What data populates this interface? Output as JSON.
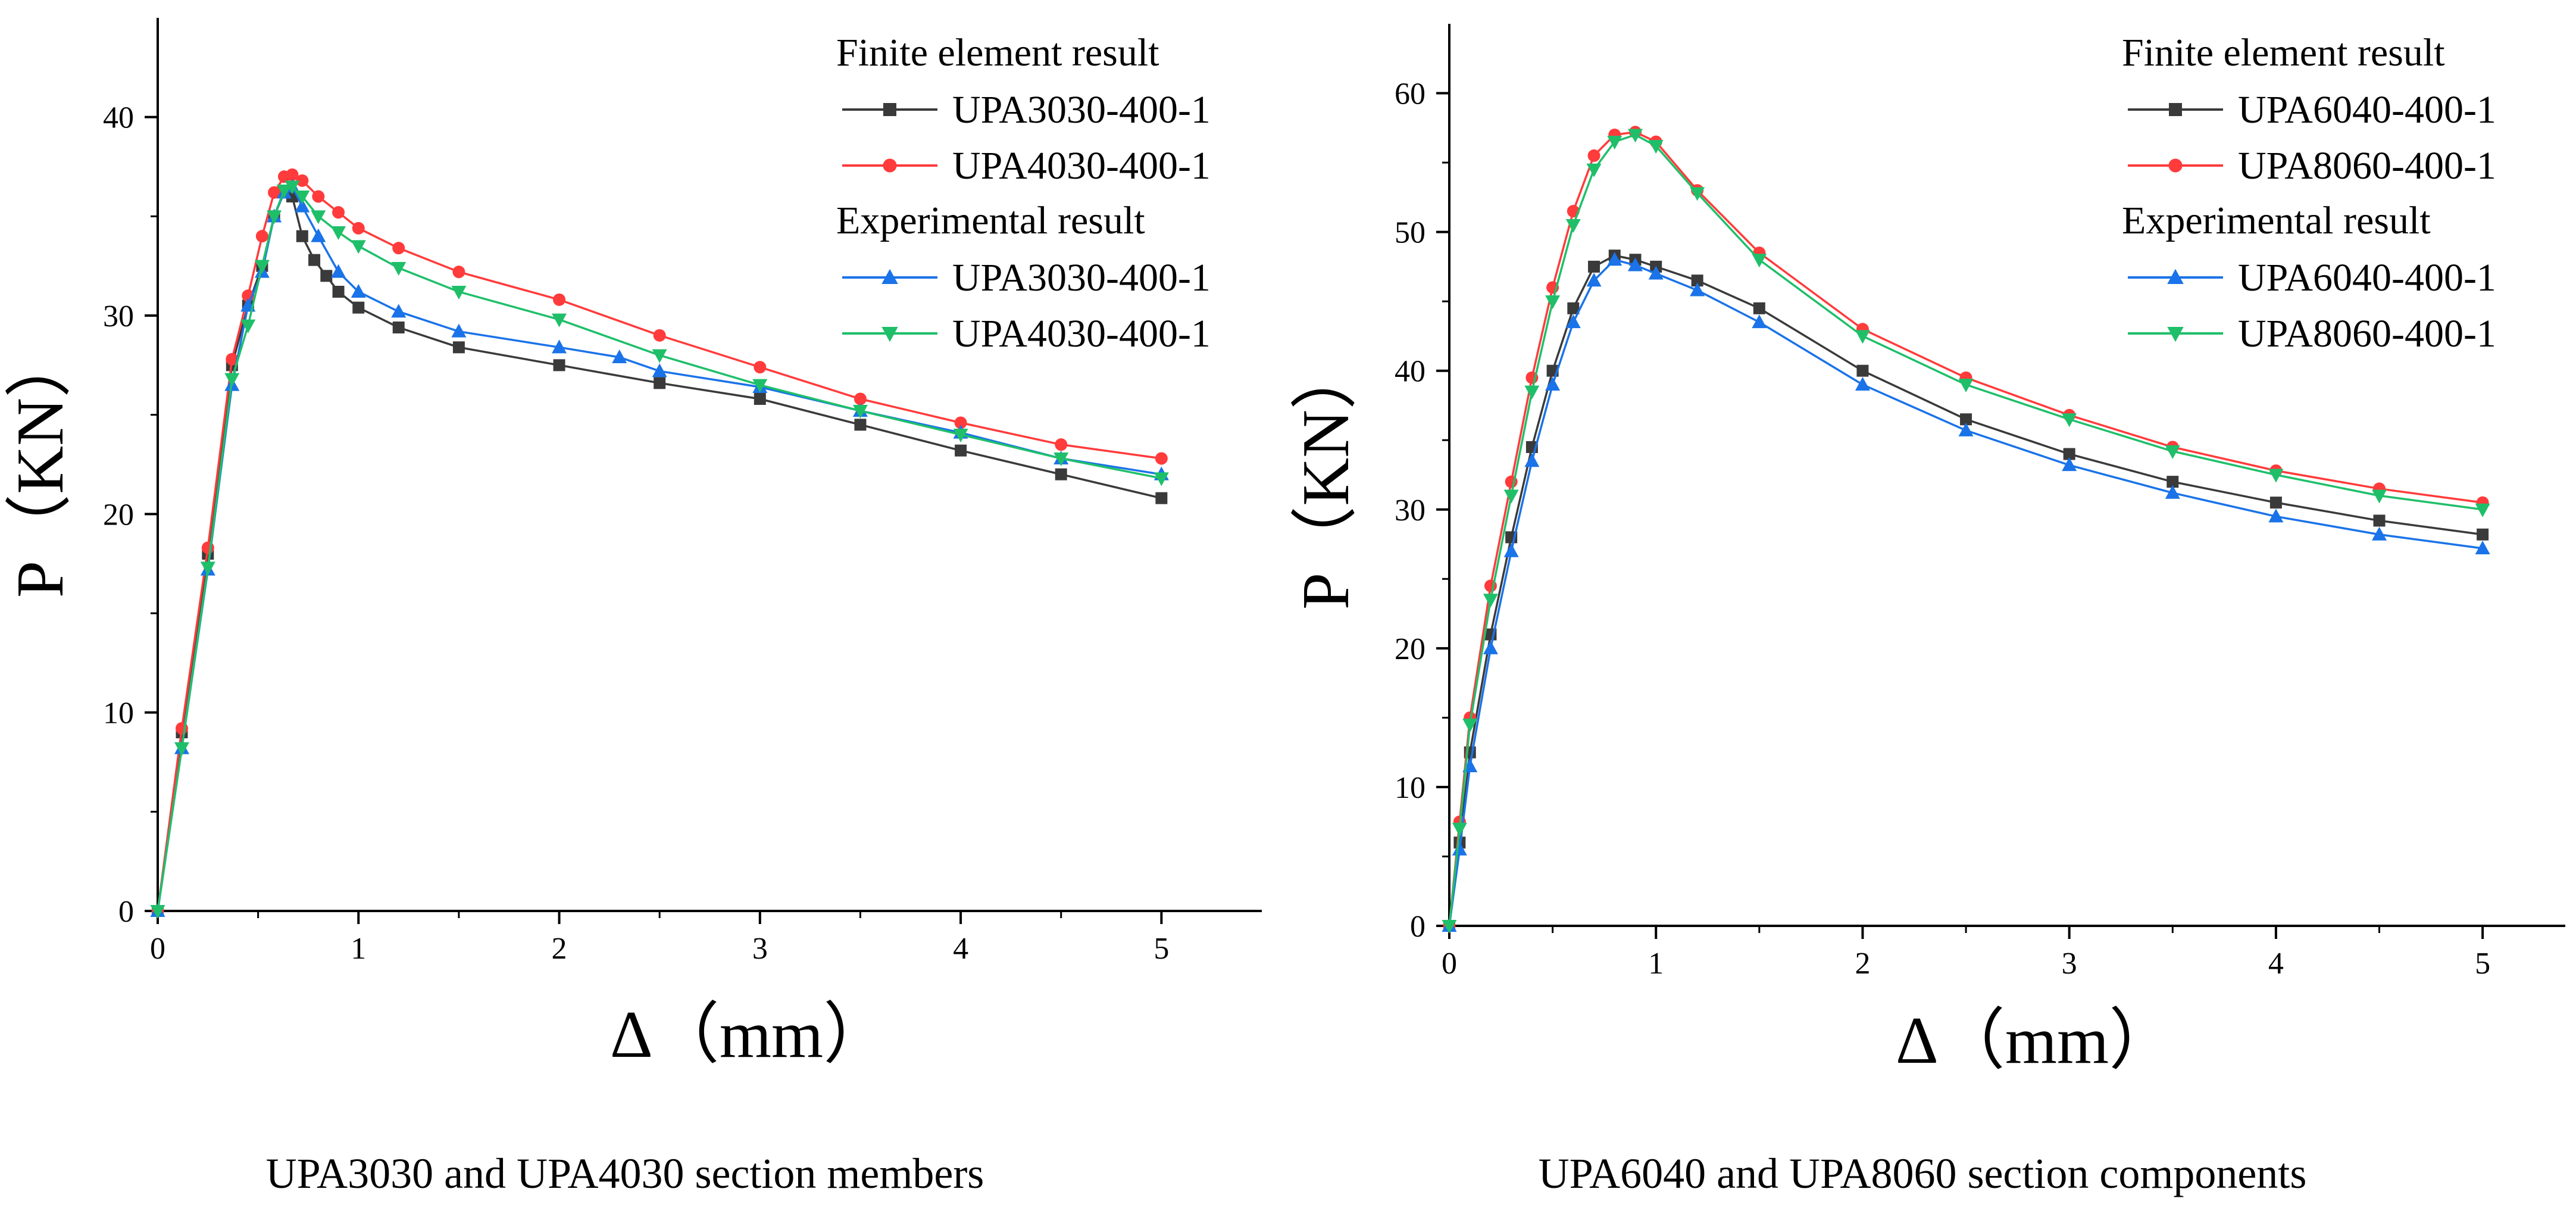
{
  "colors": {
    "black_series": "#3a3a3a",
    "red_series": "#ff3b3b",
    "blue_series": "#1a73e8",
    "green_series": "#1fbf6a",
    "axis": "#000000"
  },
  "chart_data": [
    {
      "type": "line",
      "caption": "UPA3030 and UPA4030 section members",
      "xlabel": "Δ（mm）",
      "ylabel": "P（KN）",
      "xlim": [
        0,
        5.5
      ],
      "ylim": [
        0,
        45
      ],
      "xticks": [
        0,
        1,
        2,
        3,
        4,
        5
      ],
      "yticks": [
        0,
        10,
        20,
        30,
        40
      ],
      "legend_groups": [
        {
          "title": "Finite element result",
          "entries": [
            "UPA3030-400-1",
            "UPA4030-400-1"
          ]
        },
        {
          "title": "Experimental result",
          "entries": [
            "UPA3030-400-1",
            "UPA4030-400-1"
          ]
        }
      ],
      "series": [
        {
          "name": "UPA3030-400-1",
          "group": "Finite element result",
          "color": "#3a3a3a",
          "marker": "square",
          "x": [
            0,
            0.12,
            0.25,
            0.37,
            0.45,
            0.52,
            0.58,
            0.63,
            0.67,
            0.72,
            0.78,
            0.84,
            0.9,
            1.0,
            1.2,
            1.5,
            2.0,
            2.5,
            3.0,
            3.5,
            4.0,
            4.5,
            5.0
          ],
          "y": [
            0,
            9.0,
            18.0,
            27.5,
            30.5,
            32.5,
            35.0,
            36.3,
            36.0,
            34.0,
            32.8,
            32.0,
            31.2,
            30.4,
            29.4,
            28.4,
            27.5,
            26.6,
            25.8,
            24.5,
            23.2,
            22.0,
            20.8
          ]
        },
        {
          "name": "UPA4030-400-1",
          "group": "Finite element result",
          "color": "#ff3b3b",
          "marker": "circle",
          "x": [
            0,
            0.12,
            0.25,
            0.37,
            0.45,
            0.52,
            0.58,
            0.63,
            0.67,
            0.72,
            0.8,
            0.9,
            1.0,
            1.2,
            1.5,
            2.0,
            2.5,
            3.0,
            3.5,
            4.0,
            4.5,
            5.0
          ],
          "y": [
            0,
            9.2,
            18.3,
            27.8,
            31.0,
            34.0,
            36.2,
            37.0,
            37.1,
            36.8,
            36.0,
            35.2,
            34.4,
            33.4,
            32.2,
            30.8,
            29.0,
            27.4,
            25.8,
            24.6,
            23.5,
            22.8
          ]
        },
        {
          "name": "UPA3030-400-1",
          "group": "Experimental result",
          "color": "#1a73e8",
          "marker": "triangle-up",
          "x": [
            0,
            0.12,
            0.25,
            0.37,
            0.45,
            0.52,
            0.58,
            0.63,
            0.67,
            0.72,
            0.8,
            0.9,
            1.0,
            1.2,
            1.5,
            2.0,
            2.3,
            2.5,
            3.0,
            3.5,
            4.0,
            4.5,
            5.0
          ],
          "y": [
            0,
            8.2,
            17.2,
            26.5,
            30.5,
            32.2,
            35.0,
            36.2,
            36.5,
            35.5,
            34.0,
            32.2,
            31.2,
            30.2,
            29.2,
            28.4,
            27.9,
            27.2,
            26.4,
            25.2,
            24.1,
            22.8,
            22.0
          ]
        },
        {
          "name": "UPA4030-400-1",
          "group": "Experimental result",
          "color": "#1fbf6a",
          "marker": "triangle-down",
          "x": [
            0,
            0.12,
            0.25,
            0.37,
            0.45,
            0.52,
            0.58,
            0.63,
            0.67,
            0.72,
            0.8,
            0.9,
            1.0,
            1.2,
            1.5,
            2.0,
            2.5,
            3.0,
            3.5,
            4.0,
            4.5,
            5.0
          ],
          "y": [
            0,
            8.2,
            17.3,
            26.8,
            29.5,
            32.5,
            35.0,
            36.3,
            36.5,
            36.0,
            35.0,
            34.2,
            33.5,
            32.4,
            31.2,
            29.8,
            28.0,
            26.5,
            25.2,
            24.0,
            22.8,
            21.8
          ]
        }
      ]
    },
    {
      "type": "line",
      "caption": "UPA6040 and UPA8060 section components",
      "xlabel": "Δ（mm）",
      "ylabel": "P（KN）",
      "xlim": [
        0,
        5.4
      ],
      "ylim": [
        0,
        65
      ],
      "xticks": [
        0,
        1,
        2,
        3,
        4,
        5
      ],
      "yticks": [
        0,
        10,
        20,
        30,
        40,
        50,
        60
      ],
      "legend_groups": [
        {
          "title": "Finite element result",
          "entries": [
            "UPA6040-400-1",
            "UPA8060-400-1"
          ]
        },
        {
          "title": "Experimental result",
          "entries": [
            "UPA6040-400-1",
            "UPA8060-400-1"
          ]
        }
      ],
      "series": [
        {
          "name": "UPA6040-400-1",
          "group": "Finite element result",
          "color": "#3a3a3a",
          "marker": "square",
          "x": [
            0,
            0.05,
            0.1,
            0.2,
            0.3,
            0.4,
            0.5,
            0.6,
            0.7,
            0.8,
            0.9,
            1.0,
            1.2,
            1.5,
            2.0,
            2.5,
            3.0,
            3.5,
            4.0,
            4.5,
            5.0
          ],
          "y": [
            0,
            6.0,
            12.5,
            21.0,
            28.0,
            34.5,
            40.0,
            44.5,
            47.5,
            48.3,
            48.0,
            47.5,
            46.5,
            44.5,
            40.0,
            36.5,
            34.0,
            32.0,
            30.5,
            29.2,
            28.2
          ]
        },
        {
          "name": "UPA8060-400-1",
          "group": "Finite element result",
          "color": "#ff3b3b",
          "marker": "circle",
          "x": [
            0,
            0.05,
            0.1,
            0.2,
            0.3,
            0.4,
            0.5,
            0.6,
            0.7,
            0.8,
            0.9,
            1.0,
            1.2,
            1.5,
            2.0,
            2.5,
            3.0,
            3.5,
            4.0,
            4.5,
            5.0
          ],
          "y": [
            0,
            7.5,
            15.0,
            24.5,
            32.0,
            39.5,
            46.0,
            51.5,
            55.5,
            57.0,
            57.2,
            56.5,
            53.0,
            48.5,
            43.0,
            39.5,
            36.8,
            34.5,
            32.8,
            31.5,
            30.5
          ]
        },
        {
          "name": "UPA6040-400-1",
          "group": "Experimental result",
          "color": "#1a73e8",
          "marker": "triangle-up",
          "x": [
            0,
            0.05,
            0.1,
            0.2,
            0.3,
            0.4,
            0.5,
            0.6,
            0.7,
            0.8,
            0.9,
            1.0,
            1.2,
            1.5,
            2.0,
            2.5,
            3.0,
            3.5,
            4.0,
            4.5,
            5.0
          ],
          "y": [
            0,
            5.5,
            11.5,
            20.0,
            27.0,
            33.5,
            39.0,
            43.5,
            46.5,
            48.0,
            47.6,
            47.0,
            45.8,
            43.5,
            39.0,
            35.7,
            33.2,
            31.2,
            29.5,
            28.2,
            27.2
          ]
        },
        {
          "name": "UPA8060-400-1",
          "group": "Experimental result",
          "color": "#1fbf6a",
          "marker": "triangle-down",
          "x": [
            0,
            0.05,
            0.1,
            0.2,
            0.3,
            0.4,
            0.5,
            0.6,
            0.7,
            0.8,
            0.9,
            1.0,
            1.2,
            1.5,
            2.0,
            2.5,
            3.0,
            3.5,
            4.0,
            4.5,
            5.0
          ],
          "y": [
            0,
            7.0,
            14.5,
            23.5,
            31.0,
            38.5,
            45.0,
            50.5,
            54.5,
            56.5,
            57.0,
            56.2,
            52.8,
            48.0,
            42.5,
            39.0,
            36.5,
            34.2,
            32.5,
            31.0,
            30.0
          ]
        }
      ]
    }
  ]
}
